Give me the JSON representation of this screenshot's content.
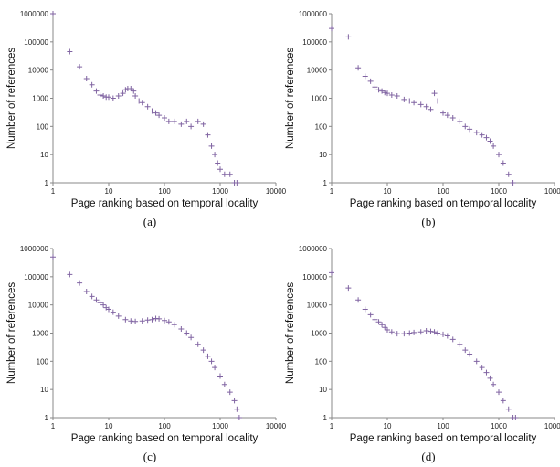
{
  "chart_data": [
    {
      "type": "scatter",
      "caption": "(a)",
      "x_label": "Page ranking based on temporal locality",
      "y_label": "Number of references",
      "color": "#8064a2",
      "xscale": "log",
      "yscale": "log",
      "xlim": [
        1,
        10000
      ],
      "ylim": [
        1,
        1000000
      ],
      "xticks": [
        1,
        10,
        100,
        1000,
        10000
      ],
      "yticks": [
        1,
        10,
        100,
        1000,
        10000,
        100000,
        1000000
      ],
      "x": [
        1,
        2,
        3,
        4,
        5,
        6,
        7,
        8,
        9,
        10,
        12,
        15,
        18,
        20,
        22,
        25,
        28,
        30,
        35,
        40,
        50,
        60,
        70,
        80,
        100,
        120,
        150,
        200,
        250,
        300,
        400,
        500,
        600,
        700,
        800,
        900,
        1000,
        1200,
        1500,
        1800,
        2000
      ],
      "values": [
        1000000,
        45000,
        13000,
        5000,
        3000,
        1800,
        1300,
        1200,
        1100,
        1100,
        1000,
        1200,
        1500,
        2000,
        2200,
        2200,
        1800,
        1200,
        800,
        700,
        500,
        350,
        300,
        250,
        200,
        150,
        150,
        120,
        150,
        100,
        150,
        120,
        50,
        20,
        10,
        5,
        3,
        2,
        2,
        1,
        1
      ]
    },
    {
      "type": "scatter",
      "caption": "(b)",
      "x_label": "Page ranking based on temporal locality",
      "y_label": "Number of references",
      "color": "#8064a2",
      "xscale": "log",
      "yscale": "log",
      "xlim": [
        1,
        10000
      ],
      "ylim": [
        1,
        1000000
      ],
      "xticks": [
        1,
        10,
        100,
        1000,
        10000
      ],
      "yticks": [
        1,
        10,
        100,
        1000,
        10000,
        100000,
        1000000
      ],
      "x": [
        1,
        2,
        3,
        4,
        5,
        6,
        7,
        8,
        9,
        10,
        12,
        15,
        20,
        25,
        30,
        40,
        50,
        60,
        70,
        80,
        100,
        120,
        150,
        200,
        250,
        300,
        400,
        500,
        600,
        700,
        800,
        1000,
        1200,
        1500,
        1800
      ],
      "values": [
        300000,
        150000,
        12000,
        6000,
        4000,
        2500,
        2000,
        1800,
        1600,
        1500,
        1300,
        1200,
        900,
        800,
        700,
        600,
        500,
        400,
        1500,
        800,
        300,
        250,
        200,
        150,
        100,
        80,
        60,
        50,
        40,
        30,
        20,
        10,
        5,
        2,
        1
      ]
    },
    {
      "type": "scatter",
      "caption": "(c)",
      "x_label": "Page ranking based on temporal locality",
      "y_label": "Number of references",
      "color": "#8064a2",
      "xscale": "log",
      "yscale": "log",
      "xlim": [
        1,
        10000
      ],
      "ylim": [
        1,
        1000000
      ],
      "xticks": [
        1,
        10,
        100,
        1000,
        10000
      ],
      "yticks": [
        1,
        10,
        100,
        1000,
        10000,
        100000,
        1000000
      ],
      "x": [
        1,
        2,
        3,
        4,
        5,
        6,
        7,
        8,
        9,
        10,
        12,
        15,
        20,
        25,
        30,
        40,
        50,
        60,
        70,
        80,
        100,
        120,
        150,
        200,
        250,
        300,
        400,
        500,
        600,
        700,
        800,
        1000,
        1200,
        1500,
        1800,
        2000,
        2200
      ],
      "values": [
        500000,
        120000,
        60000,
        30000,
        20000,
        15000,
        12000,
        10000,
        8000,
        7000,
        5500,
        4000,
        3000,
        2700,
        2600,
        2700,
        2900,
        3000,
        3300,
        3200,
        2800,
        2500,
        2000,
        1400,
        1000,
        700,
        400,
        250,
        150,
        100,
        60,
        30,
        15,
        8,
        4,
        2,
        1
      ]
    },
    {
      "type": "scatter",
      "caption": "(d)",
      "x_label": "Page ranking based on temporal locality",
      "y_label": "Number of references",
      "color": "#8064a2",
      "xscale": "log",
      "yscale": "log",
      "xlim": [
        1,
        10000
      ],
      "ylim": [
        1,
        1000000
      ],
      "xticks": [
        1,
        10,
        100,
        1000,
        10000
      ],
      "yticks": [
        1,
        10,
        100,
        1000,
        10000,
        100000,
        1000000
      ],
      "x": [
        1,
        2,
        3,
        4,
        5,
        6,
        7,
        8,
        9,
        10,
        12,
        15,
        20,
        25,
        30,
        40,
        50,
        60,
        70,
        80,
        100,
        120,
        150,
        200,
        250,
        300,
        400,
        500,
        600,
        700,
        800,
        1000,
        1200,
        1500,
        1800,
        2000
      ],
      "values": [
        140000,
        40000,
        15000,
        7000,
        4500,
        3000,
        2500,
        2000,
        1600,
        1300,
        1100,
        950,
        950,
        1000,
        1050,
        1100,
        1200,
        1150,
        1100,
        1000,
        900,
        800,
        600,
        400,
        250,
        180,
        100,
        60,
        40,
        25,
        15,
        8,
        4,
        2,
        1,
        1
      ]
    }
  ]
}
